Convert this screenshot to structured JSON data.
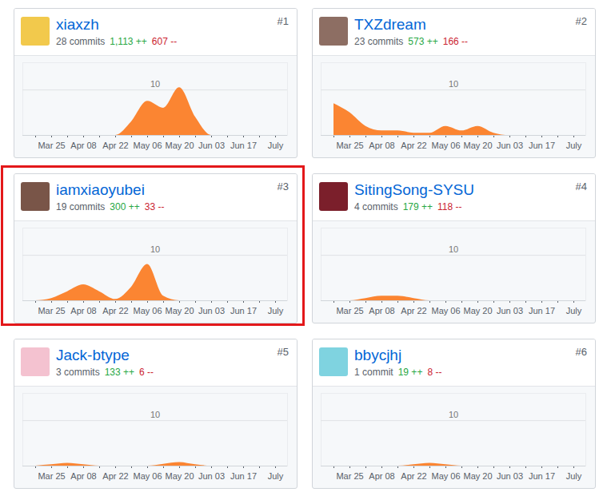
{
  "chart_data": [
    {
      "type": "area",
      "title": "xiaxzh",
      "rank": "#1",
      "subtitle": "28 commits",
      "annotations": [
        {
          "text": "1,113 ++",
          "color": "#28a745"
        },
        {
          "text": "607 --",
          "color": "#cb2431"
        }
      ],
      "categories": [
        null,
        "Mar 25",
        null,
        "Apr 08",
        null,
        "Apr 22",
        null,
        "May 06",
        null,
        "May 20",
        null,
        "Jun 03",
        null,
        "Jun 17",
        null,
        "July"
      ],
      "values": [
        0,
        0,
        0,
        0,
        0,
        0,
        3,
        7.5,
        6,
        10.5,
        4,
        0,
        0,
        0,
        0,
        0
      ],
      "color": "#fb8532",
      "ylim": [
        0,
        16
      ],
      "yticks": [
        10
      ]
    },
    {
      "type": "area",
      "title": "TXZdream",
      "rank": "#2",
      "subtitle": "23 commits",
      "annotations": [
        {
          "text": "573 ++",
          "color": "#28a745"
        },
        {
          "text": "166 --",
          "color": "#cb2431"
        }
      ],
      "categories": [
        null,
        "Mar 25",
        null,
        "Apr 08",
        null,
        "Apr 22",
        null,
        "May 06",
        null,
        "May 20",
        null,
        "Jun 03",
        null,
        "Jun 17",
        null,
        "July"
      ],
      "values": [
        7,
        5,
        2,
        1,
        1,
        0.5,
        0.5,
        2,
        1,
        2,
        0.5,
        0,
        0,
        0,
        0,
        0
      ],
      "color": "#fb8532",
      "ylim": [
        0,
        16
      ],
      "yticks": [
        10
      ]
    },
    {
      "type": "area",
      "title": "iamxiaoyubei",
      "rank": "#3",
      "subtitle": "19 commits",
      "annotations": [
        {
          "text": "300 ++",
          "color": "#28a745"
        },
        {
          "text": "33 --",
          "color": "#cb2431"
        }
      ],
      "categories": [
        null,
        "Mar 25",
        null,
        "Apr 08",
        null,
        "Apr 22",
        null,
        "May 06",
        null,
        "May 20",
        null,
        "Jun 03",
        null,
        "Jun 17",
        null,
        "July"
      ],
      "values": [
        0,
        0.5,
        2,
        3.5,
        2,
        0.3,
        3,
        8,
        1,
        0,
        0,
        0,
        0,
        0,
        0,
        0
      ],
      "color": "#fb8532",
      "ylim": [
        0,
        16
      ],
      "yticks": [
        10
      ]
    },
    {
      "type": "area",
      "title": "SitingSong-SYSU",
      "rank": "#4",
      "subtitle": "4 commits",
      "annotations": [
        {
          "text": "179 ++",
          "color": "#28a745"
        },
        {
          "text": "118 --",
          "color": "#cb2431"
        }
      ],
      "categories": [
        null,
        "Mar 25",
        null,
        "Apr 08",
        null,
        "Apr 22",
        null,
        "May 06",
        null,
        "May 20",
        null,
        "Jun 03",
        null,
        "Jun 17",
        null,
        "July"
      ],
      "values": [
        0,
        0,
        0.5,
        1,
        1,
        0.5,
        0,
        0,
        0,
        0,
        0,
        0,
        0,
        0,
        0,
        0
      ],
      "color": "#fb8532",
      "ylim": [
        0,
        16
      ],
      "yticks": [
        10
      ]
    },
    {
      "type": "area",
      "title": "Jack-btype",
      "rank": "#5",
      "subtitle": "3 commits",
      "annotations": [
        {
          "text": "133 ++",
          "color": "#28a745"
        },
        {
          "text": "6 --",
          "color": "#cb2431"
        }
      ],
      "categories": [
        null,
        "Mar 25",
        null,
        "Apr 08",
        null,
        "Apr 22",
        null,
        "May 06",
        null,
        "May 20",
        null,
        "Jun 03",
        null,
        "Jun 17",
        null,
        "July"
      ],
      "values": [
        0,
        0.3,
        0.6,
        0.3,
        0,
        0,
        0,
        0,
        0.4,
        0.8,
        0.3,
        0,
        0,
        0,
        0,
        0
      ],
      "color": "#fb8532",
      "ylim": [
        0,
        16
      ],
      "yticks": [
        10
      ]
    },
    {
      "type": "area",
      "title": "bbycjhj",
      "rank": "#6",
      "subtitle": "1 commit",
      "annotations": [
        {
          "text": "19 ++",
          "color": "#28a745"
        },
        {
          "text": "8 --",
          "color": "#cb2431"
        }
      ],
      "categories": [
        null,
        "Mar 25",
        null,
        "Apr 08",
        null,
        "Apr 22",
        null,
        "May 06",
        null,
        "May 20",
        null,
        "Jun 03",
        null,
        "Jun 17",
        null,
        "July"
      ],
      "values": [
        0,
        0,
        0,
        0,
        0,
        0.3,
        0.6,
        0.3,
        0,
        0,
        0,
        0,
        0,
        0,
        0,
        0
      ],
      "color": "#fb8532",
      "ylim": [
        0,
        16
      ],
      "yticks": [
        10
      ]
    }
  ]
}
